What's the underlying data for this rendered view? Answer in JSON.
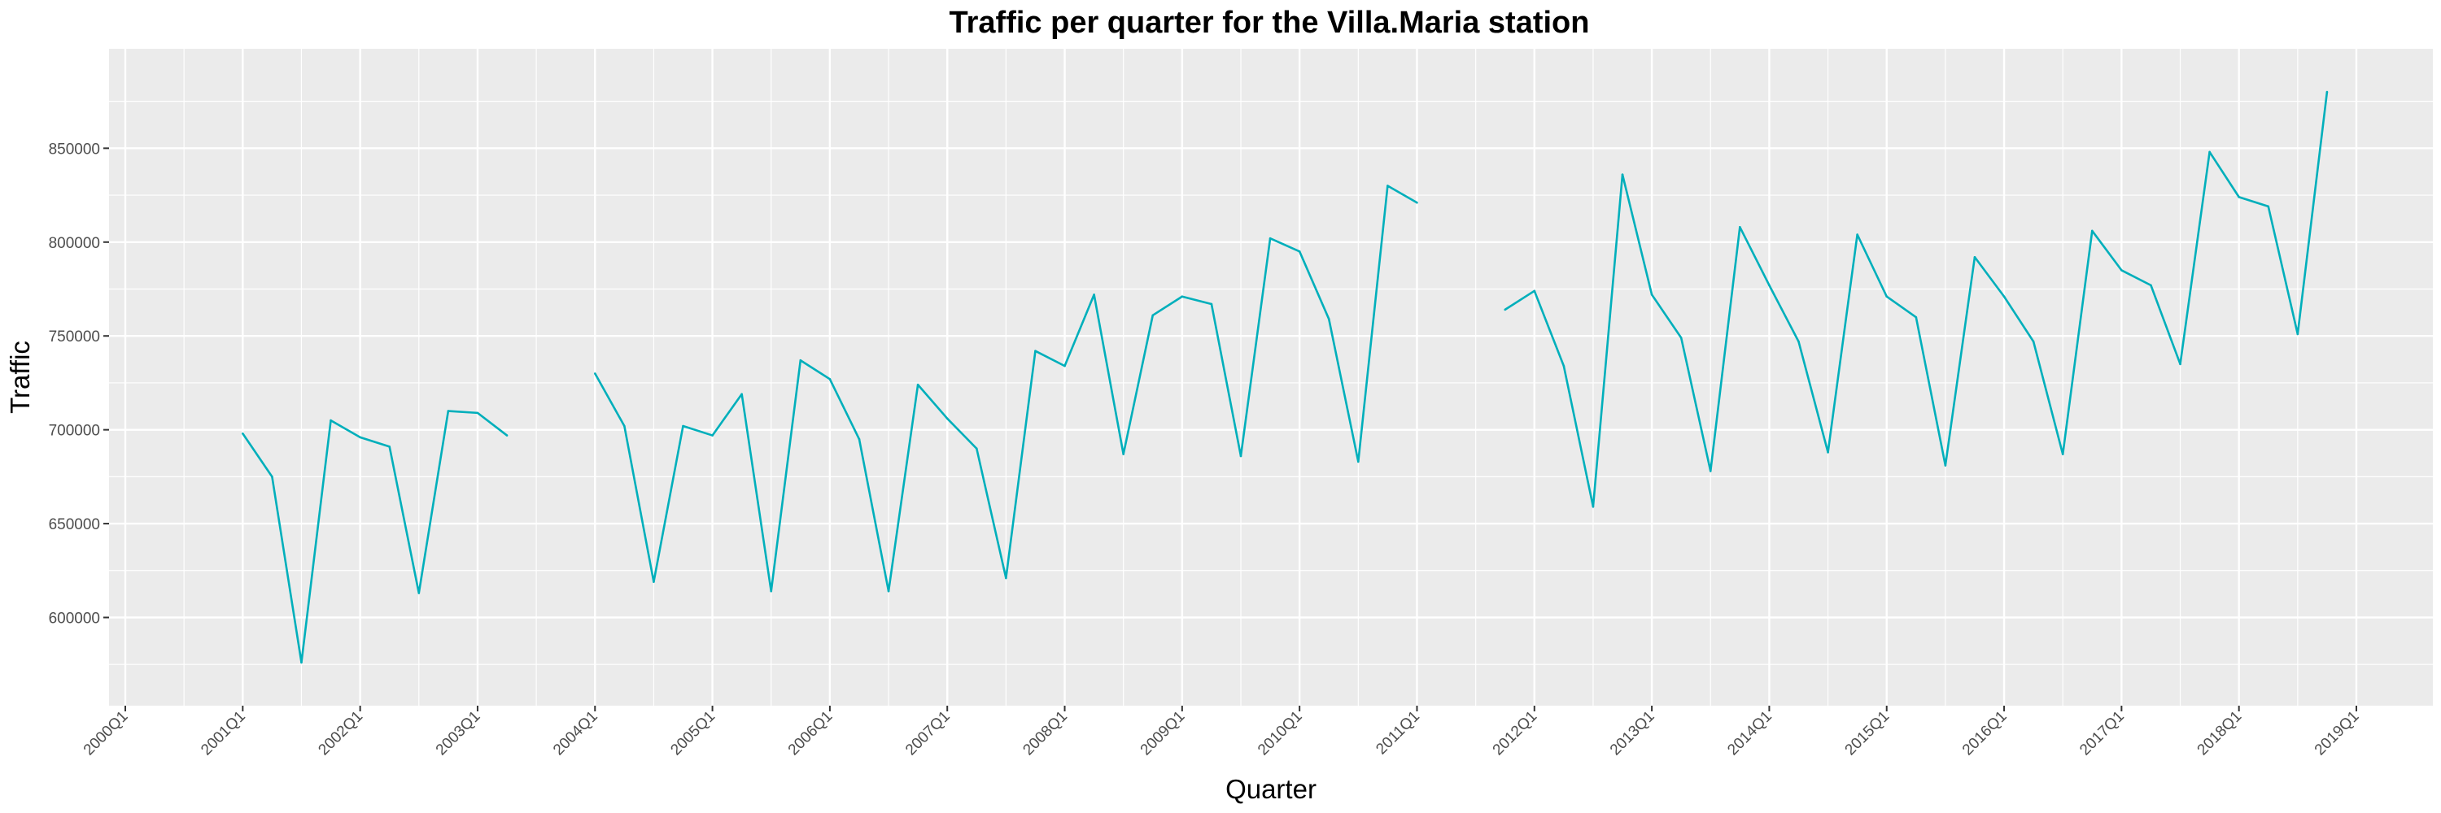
{
  "chart_data": {
    "type": "line",
    "title": "Traffic per quarter for the Villa.Maria station",
    "xlabel": "Quarter",
    "ylabel": "Traffic",
    "x_ticks": [
      "2000Q1",
      "2001Q1",
      "2002Q1",
      "2003Q1",
      "2004Q1",
      "2005Q1",
      "2006Q1",
      "2007Q1",
      "2008Q1",
      "2009Q1",
      "2010Q1",
      "2011Q1",
      "2012Q1",
      "2013Q1",
      "2014Q1",
      "2015Q1",
      "2016Q1",
      "2017Q1",
      "2018Q1",
      "2019Q1"
    ],
    "y_ticks": [
      600000,
      650000,
      700000,
      750000,
      800000,
      850000
    ],
    "y_tick_labels": [
      "600000",
      "650000",
      "700000",
      "750000",
      "800000",
      "850000"
    ],
    "xlim": [
      "2000Q1",
      "2019Q1"
    ],
    "ylim": [
      553000,
      903000
    ],
    "grid": true,
    "legend": "none",
    "series": [
      {
        "color": "#00afbb",
        "points": [
          {
            "x": "2001Q1",
            "y": 698000
          },
          {
            "x": "2001Q2",
            "y": 675000
          },
          {
            "x": "2001Q3",
            "y": 576000
          },
          {
            "x": "2001Q4",
            "y": 705000
          },
          {
            "x": "2002Q1",
            "y": 696000
          },
          {
            "x": "2002Q2",
            "y": 691000
          },
          {
            "x": "2002Q3",
            "y": 613000
          },
          {
            "x": "2002Q4",
            "y": 710000
          },
          {
            "x": "2003Q1",
            "y": 709000
          },
          {
            "x": "2003Q2",
            "y": 697000
          },
          {
            "x": "2003Q3",
            "y": null
          },
          {
            "x": "2003Q4",
            "y": null
          },
          {
            "x": "2004Q1",
            "y": 730000
          },
          {
            "x": "2004Q2",
            "y": 702000
          },
          {
            "x": "2004Q3",
            "y": 619000
          },
          {
            "x": "2004Q4",
            "y": 702000
          },
          {
            "x": "2005Q1",
            "y": 697000
          },
          {
            "x": "2005Q2",
            "y": 719000
          },
          {
            "x": "2005Q3",
            "y": 614000
          },
          {
            "x": "2005Q4",
            "y": 737000
          },
          {
            "x": "2006Q1",
            "y": 727000
          },
          {
            "x": "2006Q2",
            "y": 695000
          },
          {
            "x": "2006Q3",
            "y": 614000
          },
          {
            "x": "2006Q4",
            "y": 724000
          },
          {
            "x": "2007Q1",
            "y": 706000
          },
          {
            "x": "2007Q2",
            "y": 690000
          },
          {
            "x": "2007Q3",
            "y": 621000
          },
          {
            "x": "2007Q4",
            "y": 742000
          },
          {
            "x": "2008Q1",
            "y": 734000
          },
          {
            "x": "2008Q2",
            "y": 772000
          },
          {
            "x": "2008Q3",
            "y": 687000
          },
          {
            "x": "2008Q4",
            "y": 761000
          },
          {
            "x": "2009Q1",
            "y": 771000
          },
          {
            "x": "2009Q2",
            "y": 767000
          },
          {
            "x": "2009Q3",
            "y": 686000
          },
          {
            "x": "2009Q4",
            "y": 802000
          },
          {
            "x": "2010Q1",
            "y": 795000
          },
          {
            "x": "2010Q2",
            "y": 759000
          },
          {
            "x": "2010Q3",
            "y": 683000
          },
          {
            "x": "2010Q4",
            "y": 830000
          },
          {
            "x": "2011Q1",
            "y": 821000
          },
          {
            "x": "2011Q2",
            "y": null
          },
          {
            "x": "2011Q3",
            "y": null
          },
          {
            "x": "2011Q4",
            "y": 764000
          },
          {
            "x": "2012Q1",
            "y": 774000
          },
          {
            "x": "2012Q2",
            "y": 734000
          },
          {
            "x": "2012Q3",
            "y": 659000
          },
          {
            "x": "2012Q4",
            "y": 836000
          },
          {
            "x": "2013Q1",
            "y": 772000
          },
          {
            "x": "2013Q2",
            "y": 749000
          },
          {
            "x": "2013Q3",
            "y": 678000
          },
          {
            "x": "2013Q4",
            "y": 808000
          },
          {
            "x": "2014Q1",
            "y": 777000
          },
          {
            "x": "2014Q2",
            "y": 747000
          },
          {
            "x": "2014Q3",
            "y": 688000
          },
          {
            "x": "2014Q4",
            "y": 804000
          },
          {
            "x": "2015Q1",
            "y": 771000
          },
          {
            "x": "2015Q2",
            "y": 760000
          },
          {
            "x": "2015Q3",
            "y": 681000
          },
          {
            "x": "2015Q4",
            "y": 792000
          },
          {
            "x": "2016Q1",
            "y": 771000
          },
          {
            "x": "2016Q2",
            "y": 747000
          },
          {
            "x": "2016Q3",
            "y": 687000
          },
          {
            "x": "2016Q4",
            "y": 806000
          },
          {
            "x": "2017Q1",
            "y": 785000
          },
          {
            "x": "2017Q2",
            "y": 777000
          },
          {
            "x": "2017Q3",
            "y": 735000
          },
          {
            "x": "2017Q4",
            "y": 848000
          },
          {
            "x": "2018Q1",
            "y": 824000
          },
          {
            "x": "2018Q2",
            "y": 819000
          },
          {
            "x": "2018Q3",
            "y": 751000
          },
          {
            "x": "2018Q4",
            "y": 880000
          }
        ]
      }
    ]
  }
}
